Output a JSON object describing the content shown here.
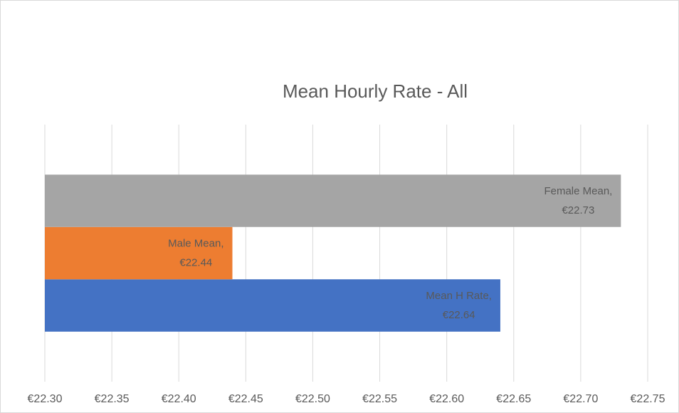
{
  "chart_data": {
    "type": "bar",
    "orientation": "horizontal",
    "title": "Mean Hourly Rate - All",
    "series": [
      {
        "name": "Mean H Rate",
        "color": "#4472c4",
        "values": [
          22.64
        ],
        "value_labels": [
          "€22.64"
        ]
      },
      {
        "name": "Male Mean",
        "color": "#ed7d31",
        "values": [
          22.44
        ],
        "value_labels": [
          "€22.44"
        ]
      },
      {
        "name": "Female Mean",
        "color": "#a5a5a5",
        "values": [
          22.73
        ],
        "value_labels": [
          "€22.73"
        ]
      }
    ],
    "label_separator": ",",
    "xlim": [
      22.3,
      22.75
    ],
    "xticks": [
      {
        "value": 22.3,
        "label": "€22.30"
      },
      {
        "value": 22.35,
        "label": "€22.35"
      },
      {
        "value": 22.4,
        "label": "€22.40"
      },
      {
        "value": 22.45,
        "label": "€22.45"
      },
      {
        "value": 22.5,
        "label": "€22.50"
      },
      {
        "value": 22.55,
        "label": "€22.55"
      },
      {
        "value": 22.6,
        "label": "€22.60"
      },
      {
        "value": 22.65,
        "label": "€22.65"
      },
      {
        "value": 22.7,
        "label": "€22.70"
      },
      {
        "value": 22.75,
        "label": "€22.75"
      }
    ],
    "grid": true
  }
}
